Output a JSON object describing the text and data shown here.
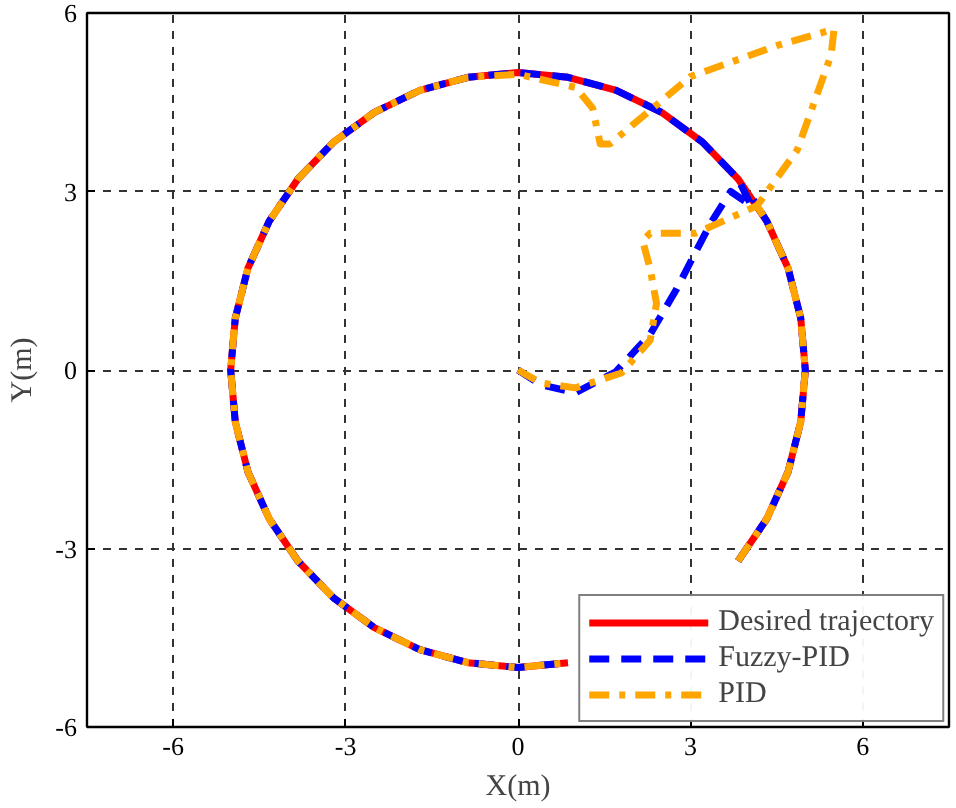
{
  "chart_data": {
    "type": "line",
    "xlabel": "X(m)",
    "ylabel": "Y(m)",
    "xlim": [
      -7.5,
      7.5
    ],
    "ylim": [
      -6,
      6
    ],
    "xticks": [
      -6,
      -3,
      0,
      3,
      6
    ],
    "yticks": [
      -6,
      -3,
      0,
      3,
      6
    ],
    "grid": true,
    "legend": "bottom right",
    "series": [
      {
        "name": "Desired trajectory",
        "color": "#ff0000",
        "line_style": "solid",
        "x": [
          5,
          4.92,
          4.7,
          4.33,
          3.83,
          3.21,
          2.5,
          1.71,
          0.87,
          0,
          -0.87,
          -1.71,
          -2.5,
          -3.21,
          -3.83,
          -4.33,
          -4.7,
          -4.92,
          -5,
          -4.92,
          -4.7,
          -4.33,
          -3.83,
          -3.21,
          -2.5,
          -1.71,
          -0.87,
          0,
          0.87,
          1.71,
          2.5,
          3.21,
          3.83,
          4.33,
          4.7,
          4.92,
          5
        ],
        "values": [
          0,
          0.87,
          1.71,
          2.5,
          3.21,
          3.83,
          4.33,
          4.7,
          4.92,
          5,
          4.92,
          4.7,
          4.33,
          3.83,
          3.21,
          2.5,
          1.71,
          0.87,
          0,
          -0.87,
          -1.71,
          -2.5,
          -3.21,
          -3.83,
          -4.33,
          -4.7,
          -4.92,
          -5,
          -4.92,
          null,
          null,
          null,
          -3.21,
          -2.5,
          -1.71,
          -0.87,
          0
        ]
      },
      {
        "name": "Fuzzy-PID",
        "color": "#0000ff",
        "line_style": "dashed",
        "x": [
          0,
          0.4,
          1.0,
          1.7,
          2.3,
          2.76,
          3.1,
          3.36,
          3.7,
          4.06,
          3.83,
          3.21,
          2.5,
          1.71,
          0.87,
          0,
          -0.87,
          -1.71,
          -2.5,
          -3.21,
          -3.83,
          -4.33,
          -4.7,
          -4.92,
          -5,
          -4.92,
          -4.7,
          -4.33,
          -3.83,
          -3.21,
          -2.5,
          -1.71,
          -0.87,
          0,
          0.87,
          1.71,
          2.5,
          3.21,
          3.83,
          4.33,
          4.7,
          4.92,
          5,
          4.92,
          4.7,
          4.33,
          4.1
        ],
        "values": [
          0,
          -0.25,
          -0.38,
          -0.03,
          0.6,
          1.36,
          2.0,
          2.48,
          3.0,
          2.76,
          3.21,
          3.83,
          4.33,
          4.7,
          4.92,
          5,
          4.92,
          4.7,
          4.33,
          3.83,
          3.21,
          2.5,
          1.71,
          0.87,
          0,
          -0.87,
          -1.71,
          -2.5,
          -3.21,
          -3.83,
          -4.33,
          -4.7,
          -4.92,
          -5,
          -4.92,
          null,
          null,
          null,
          -3.21,
          -2.5,
          -1.71,
          -0.87,
          0,
          0.87,
          1.71,
          2.5,
          2.86
        ]
      },
      {
        "name": "PID",
        "color": "#ffa500",
        "line_style": "dashdot",
        "x": [
          0,
          0.4,
          1.0,
          1.8,
          2.3,
          2.41,
          2.3,
          2.17,
          2.3,
          3.1,
          4.16,
          4.86,
          5.45,
          5.5,
          4.5,
          3.0,
          1.6,
          1.43,
          1.3,
          1.0,
          0,
          -0.87,
          -1.71,
          -2.5,
          -3.21,
          -3.83,
          -4.33,
          -4.7,
          -4.92,
          -5,
          -4.92,
          -4.7,
          -4.33,
          -3.83,
          -3.21,
          -2.5,
          -1.71,
          -0.87,
          0,
          0.87,
          1.71,
          2.5,
          3.21,
          3.83,
          4.33,
          4.7,
          4.92,
          5,
          4.92,
          4.7,
          4.33,
          4.16
        ],
        "values": [
          0,
          -0.22,
          -0.3,
          -0.05,
          0.5,
          1.12,
          1.7,
          2.17,
          2.3,
          2.3,
          2.76,
          3.7,
          5.3,
          5.73,
          5.45,
          4.93,
          3.8,
          3.8,
          4.4,
          4.75,
          4.97,
          4.92,
          4.7,
          4.33,
          3.83,
          3.21,
          2.5,
          1.71,
          0.87,
          0,
          -0.87,
          -1.71,
          -2.5,
          -3.21,
          -3.83,
          -4.33,
          -4.7,
          -4.92,
          -5,
          -4.92,
          null,
          null,
          null,
          -3.21,
          -2.5,
          -1.71,
          -0.87,
          0,
          0.87,
          1.71,
          2.5,
          2.76
        ]
      }
    ]
  }
}
